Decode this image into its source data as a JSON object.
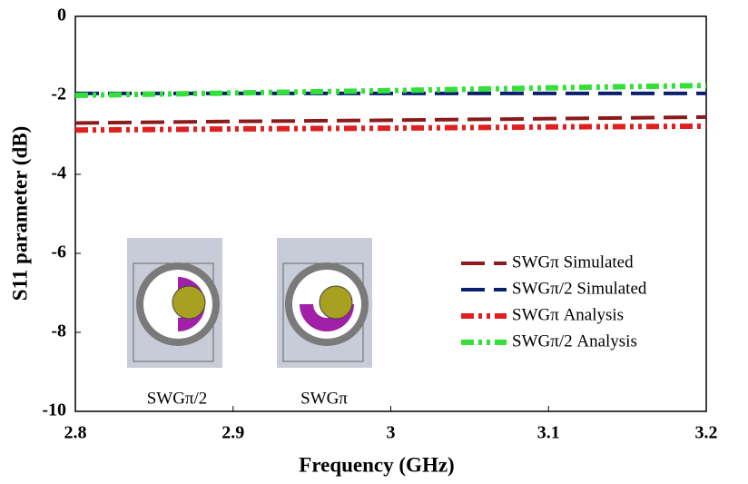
{
  "chart_data": {
    "type": "line",
    "x_label": "Frequency (GHz)",
    "y_label": "S11 parameter (dB)",
    "x": [
      2.8,
      2.9,
      3,
      3.1,
      3.2
    ],
    "series": [
      {
        "name": "SWGπ Simulated",
        "color": "#8b1a1a",
        "style": "dashed",
        "values": [
          -2.7,
          -2.66,
          -2.63,
          -2.59,
          -2.55
        ]
      },
      {
        "name": "SWGπ/2 Simulated",
        "color": "#0b1f6e",
        "style": "dashed",
        "values": [
          -1.95,
          -1.95,
          -1.95,
          -1.95,
          -1.95
        ]
      },
      {
        "name": "SWGπ Analysis",
        "color": "#e02020",
        "style": "dashdot",
        "values": [
          -2.88,
          -2.85,
          -2.83,
          -2.8,
          -2.78
        ]
      },
      {
        "name": "SWGπ/2  Analysis",
        "color": "#33e03a",
        "style": "dashdot",
        "values": [
          -2.0,
          -1.94,
          -1.88,
          -1.81,
          -1.75
        ]
      }
    ],
    "annotations": [
      "SWGπ/2",
      "SWGπ"
    ],
    "xlim": [
      2.8,
      3.2
    ],
    "xticks": [
      2.8,
      2.9,
      3,
      3.1,
      3.2
    ],
    "ylim": [
      -10,
      0
    ],
    "yticks": [
      -10,
      -8,
      -6,
      -4,
      -2,
      0
    ],
    "grid": false,
    "legend": "lower right"
  }
}
